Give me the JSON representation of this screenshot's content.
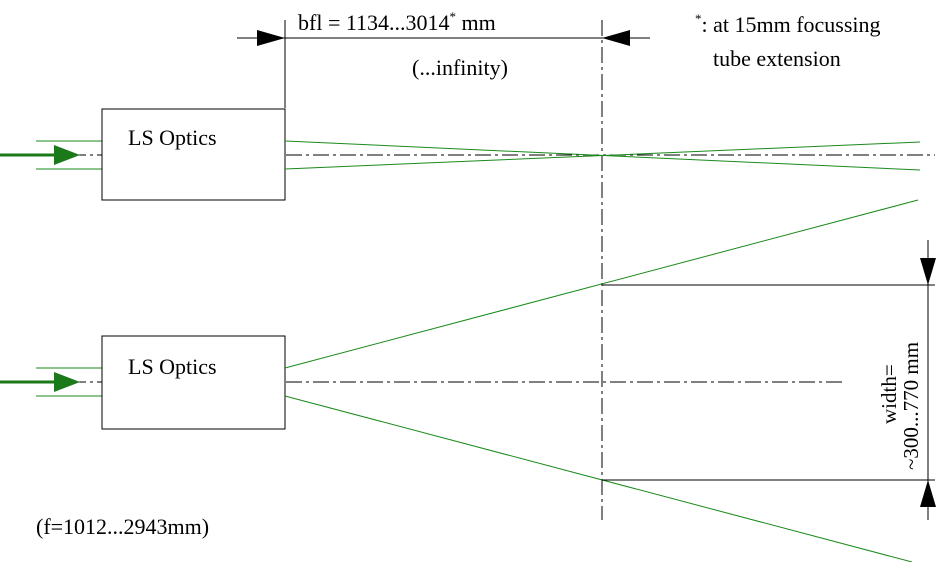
{
  "labels": {
    "bfl_prefix": "bfl = 1134...3014",
    "bfl_star": "*",
    "bfl_unit": " mm",
    "infinity": "(...infinity)",
    "footnote_star": "*",
    "footnote_line1": ": at 15mm focussing",
    "footnote_line2": "tube extension",
    "optics_top": "LS Optics",
    "optics_bottom": "LS Optics",
    "focal_range": "(f=1012...2943mm)",
    "width_line1": "width=",
    "width_line2": "~300...770 mm"
  },
  "colors": {
    "beam": "#1a8a1a",
    "arrow": "#1a7a1a",
    "line": "#000000"
  }
}
